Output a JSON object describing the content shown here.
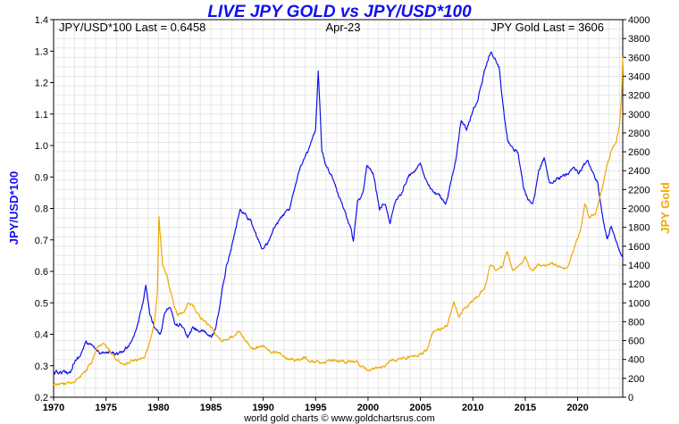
{
  "chart_data": {
    "type": "line",
    "title": "LIVE JPY GOLD vs JPY/USD*100",
    "annotations": {
      "left_last": "JPY/USD*100 Last = 0.6458",
      "date": "Apr-23",
      "right_last": "JPY Gold Last = 3606"
    },
    "credit": "world gold charts © www.goldchartsrus.com",
    "x_range": [
      1970,
      2024.3
    ],
    "x_ticks": [
      "1970",
      "1975",
      "1980",
      "1985",
      "1990",
      "1995",
      "2000",
      "2005",
      "2010",
      "2015",
      "2020"
    ],
    "y_left": {
      "label": "JPY/USD*100",
      "range": [
        0.2,
        1.4
      ],
      "ticks": [
        "0.2",
        "0.3",
        "0.4",
        "0.5",
        "0.6",
        "0.7",
        "0.8",
        "0.9",
        "1.0",
        "1.1",
        "1.2",
        "1.3",
        "1.4"
      ]
    },
    "y_right": {
      "label": "JPY Gold",
      "range": [
        0,
        4000
      ],
      "ticks": [
        "0",
        "200",
        "400",
        "600",
        "800",
        "1000",
        "1200",
        "1400",
        "1600",
        "1800",
        "2000",
        "2200",
        "2400",
        "2600",
        "2800",
        "3000",
        "3200",
        "3400",
        "3600",
        "3800",
        "4000"
      ]
    },
    "series": [
      {
        "name": "JPY/USD*100",
        "axis": "left",
        "color": "#1010ee",
        "points": [
          [
            1970,
            0.278
          ],
          [
            1971.6,
            0.28
          ],
          [
            1971.9,
            0.31
          ],
          [
            1972.5,
            0.33
          ],
          [
            1973.1,
            0.375
          ],
          [
            1973.5,
            0.365
          ],
          [
            1974.3,
            0.345
          ],
          [
            1975,
            0.34
          ],
          [
            1975.8,
            0.34
          ],
          [
            1976.5,
            0.34
          ],
          [
            1977.3,
            0.37
          ],
          [
            1977.9,
            0.42
          ],
          [
            1978.4,
            0.48
          ],
          [
            1978.8,
            0.55
          ],
          [
            1979.2,
            0.46
          ],
          [
            1979.7,
            0.42
          ],
          [
            1980.2,
            0.4
          ],
          [
            1980.6,
            0.47
          ],
          [
            1981.1,
            0.49
          ],
          [
            1981.6,
            0.43
          ],
          [
            1982.2,
            0.43
          ],
          [
            1982.8,
            0.39
          ],
          [
            1983.3,
            0.42
          ],
          [
            1984,
            0.41
          ],
          [
            1984.7,
            0.4
          ],
          [
            1985.1,
            0.39
          ],
          [
            1985.5,
            0.42
          ],
          [
            1986,
            0.52
          ],
          [
            1986.5,
            0.62
          ],
          [
            1987,
            0.68
          ],
          [
            1987.8,
            0.8
          ],
          [
            1988.3,
            0.78
          ],
          [
            1988.8,
            0.76
          ],
          [
            1989.5,
            0.7
          ],
          [
            1990,
            0.67
          ],
          [
            1990.6,
            0.7
          ],
          [
            1991.1,
            0.74
          ],
          [
            1991.7,
            0.77
          ],
          [
            1992.5,
            0.8
          ],
          [
            1993,
            0.87
          ],
          [
            1993.6,
            0.94
          ],
          [
            1994,
            0.96
          ],
          [
            1994.5,
            1.0
          ],
          [
            1995,
            1.05
          ],
          [
            1995.25,
            1.23
          ],
          [
            1995.6,
            0.98
          ],
          [
            1996,
            0.94
          ],
          [
            1996.6,
            0.9
          ],
          [
            1997.3,
            0.83
          ],
          [
            1997.8,
            0.79
          ],
          [
            1998.3,
            0.74
          ],
          [
            1998.6,
            0.7
          ],
          [
            1999,
            0.82
          ],
          [
            1999.5,
            0.85
          ],
          [
            1999.9,
            0.94
          ],
          [
            2000.5,
            0.91
          ],
          [
            2001.1,
            0.8
          ],
          [
            2001.6,
            0.82
          ],
          [
            2002.1,
            0.76
          ],
          [
            2002.6,
            0.82
          ],
          [
            2003.2,
            0.85
          ],
          [
            2003.8,
            0.9
          ],
          [
            2004.4,
            0.92
          ],
          [
            2005,
            0.94
          ],
          [
            2005.6,
            0.88
          ],
          [
            2006.2,
            0.85
          ],
          [
            2006.9,
            0.84
          ],
          [
            2007.4,
            0.81
          ],
          [
            2007.9,
            0.88
          ],
          [
            2008.4,
            0.96
          ],
          [
            2008.9,
            1.08
          ],
          [
            2009.4,
            1.05
          ],
          [
            2009.9,
            1.1
          ],
          [
            2010.5,
            1.15
          ],
          [
            2011,
            1.22
          ],
          [
            2011.4,
            1.27
          ],
          [
            2011.7,
            1.3
          ],
          [
            2012,
            1.28
          ],
          [
            2012.5,
            1.25
          ],
          [
            2012.9,
            1.12
          ],
          [
            2013.3,
            1.02
          ],
          [
            2013.8,
            0.99
          ],
          [
            2014.3,
            0.98
          ],
          [
            2014.8,
            0.87
          ],
          [
            2015.2,
            0.83
          ],
          [
            2015.7,
            0.81
          ],
          [
            2016.3,
            0.92
          ],
          [
            2016.8,
            0.96
          ],
          [
            2017.3,
            0.88
          ],
          [
            2017.9,
            0.89
          ],
          [
            2018.5,
            0.9
          ],
          [
            2019,
            0.91
          ],
          [
            2019.6,
            0.93
          ],
          [
            2020.1,
            0.91
          ],
          [
            2020.6,
            0.94
          ],
          [
            2021,
            0.95
          ],
          [
            2021.5,
            0.91
          ],
          [
            2021.9,
            0.88
          ],
          [
            2022.3,
            0.79
          ],
          [
            2022.8,
            0.7
          ],
          [
            2023.2,
            0.74
          ],
          [
            2023.6,
            0.7
          ],
          [
            2024,
            0.67
          ],
          [
            2024.3,
            0.6458
          ]
        ]
      },
      {
        "name": "JPY Gold",
        "axis": "right",
        "color": "#f0a800",
        "points": [
          [
            1970,
            130
          ],
          [
            1971,
            140
          ],
          [
            1972,
            170
          ],
          [
            1973,
            270
          ],
          [
            1973.6,
            360
          ],
          [
            1974.2,
            520
          ],
          [
            1974.8,
            560
          ],
          [
            1975.3,
            500
          ],
          [
            1976.1,
            380
          ],
          [
            1976.8,
            350
          ],
          [
            1977.5,
            380
          ],
          [
            1978.2,
            400
          ],
          [
            1978.7,
            440
          ],
          [
            1979.2,
            600
          ],
          [
            1979.6,
            780
          ],
          [
            1979.9,
            1100
          ],
          [
            1980.05,
            1900
          ],
          [
            1980.4,
            1400
          ],
          [
            1980.8,
            1300
          ],
          [
            1981.3,
            1050
          ],
          [
            1981.8,
            870
          ],
          [
            1982.4,
            900
          ],
          [
            1982.9,
            1000
          ],
          [
            1983.4,
            950
          ],
          [
            1984,
            850
          ],
          [
            1984.6,
            780
          ],
          [
            1985.2,
            730
          ],
          [
            1985.8,
            600
          ],
          [
            1986.4,
            620
          ],
          [
            1987,
            640
          ],
          [
            1987.8,
            700
          ],
          [
            1988.3,
            600
          ],
          [
            1989,
            520
          ],
          [
            1990,
            540
          ],
          [
            1990.8,
            470
          ],
          [
            1991.5,
            480
          ],
          [
            1992.2,
            420
          ],
          [
            1993,
            390
          ],
          [
            1993.8,
            420
          ],
          [
            1994.5,
            390
          ],
          [
            1995.3,
            360
          ],
          [
            1996,
            370
          ],
          [
            1996.8,
            400
          ],
          [
            1997.5,
            380
          ],
          [
            1998,
            370
          ],
          [
            1998.6,
            390
          ],
          [
            1999.2,
            340
          ],
          [
            1999.9,
            300
          ],
          [
            2000.5,
            300
          ],
          [
            2001.2,
            310
          ],
          [
            2002,
            370
          ],
          [
            2002.8,
            400
          ],
          [
            2003.5,
            420
          ],
          [
            2004.3,
            440
          ],
          [
            2005,
            450
          ],
          [
            2005.6,
            500
          ],
          [
            2006.2,
            700
          ],
          [
            2006.8,
            720
          ],
          [
            2007.5,
            750
          ],
          [
            2008.2,
            1000
          ],
          [
            2008.7,
            850
          ],
          [
            2009.2,
            940
          ],
          [
            2009.8,
            1000
          ],
          [
            2010.5,
            1070
          ],
          [
            2011.1,
            1150
          ],
          [
            2011.7,
            1400
          ],
          [
            2012.2,
            1350
          ],
          [
            2012.8,
            1380
          ],
          [
            2013.3,
            1550
          ],
          [
            2013.8,
            1350
          ],
          [
            2014.4,
            1380
          ],
          [
            2015,
            1480
          ],
          [
            2015.6,
            1330
          ],
          [
            2016.2,
            1400
          ],
          [
            2016.7,
            1380
          ],
          [
            2017.3,
            1420
          ],
          [
            2018,
            1400
          ],
          [
            2018.7,
            1350
          ],
          [
            2019.2,
            1420
          ],
          [
            2019.8,
            1620
          ],
          [
            2020.3,
            1780
          ],
          [
            2020.7,
            2050
          ],
          [
            2021.1,
            1900
          ],
          [
            2021.7,
            1950
          ],
          [
            2022.2,
            2150
          ],
          [
            2022.8,
            2450
          ],
          [
            2023.3,
            2650
          ],
          [
            2023.7,
            2700
          ],
          [
            2024,
            2900
          ],
          [
            2024.2,
            3200
          ],
          [
            2024.3,
            3606
          ]
        ]
      }
    ]
  }
}
